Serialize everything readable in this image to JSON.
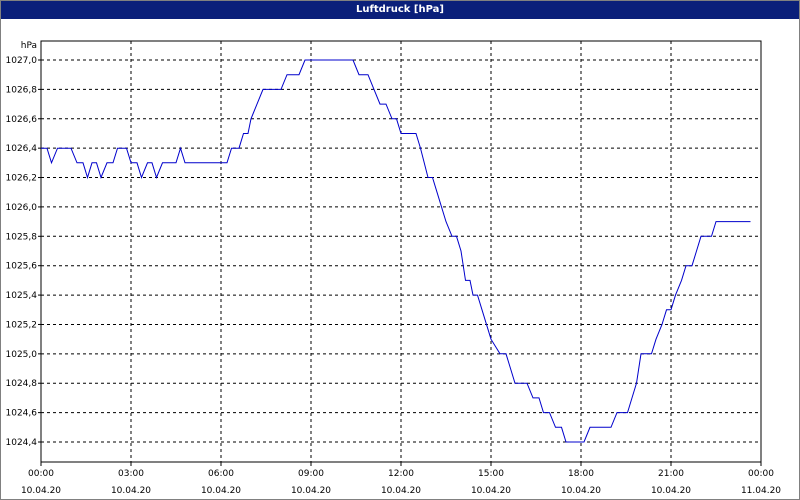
{
  "chart_data": {
    "type": "line",
    "title": "Luftdruck [hPa]",
    "ylabel": "hPa",
    "xlabel": "",
    "ylim": [
      1024.3,
      1027.1
    ],
    "xlim_hours": [
      0,
      24
    ],
    "grid": true,
    "legend": "none",
    "y_ticks": [
      "1027,0",
      "1026,8",
      "1026,6",
      "1026,4",
      "1026,2",
      "1026,0",
      "1025,8",
      "1025,6",
      "1025,4",
      "1025,2",
      "1025,0",
      "1024,8",
      "1024,6",
      "1024,4"
    ],
    "x_ticks": [
      {
        "time": "00:00",
        "date": "10.04.20"
      },
      {
        "time": "03:00",
        "date": "10.04.20"
      },
      {
        "time": "06:00",
        "date": "10.04.20"
      },
      {
        "time": "09:00",
        "date": "10.04.20"
      },
      {
        "time": "12:00",
        "date": "10.04.20"
      },
      {
        "time": "15:00",
        "date": "10.04.20"
      },
      {
        "time": "18:00",
        "date": "10.04.20"
      },
      {
        "time": "21:00",
        "date": "10.04.20"
      },
      {
        "time": "00:00",
        "date": "11.04.20"
      }
    ],
    "series": [
      {
        "color": "#0000cc",
        "points": [
          [
            0.0,
            1026.4
          ],
          [
            0.2,
            1026.4
          ],
          [
            0.35,
            1026.3
          ],
          [
            0.55,
            1026.4
          ],
          [
            1.0,
            1026.4
          ],
          [
            1.2,
            1026.3
          ],
          [
            1.4,
            1026.3
          ],
          [
            1.55,
            1026.2
          ],
          [
            1.7,
            1026.3
          ],
          [
            1.85,
            1026.3
          ],
          [
            2.0,
            1026.2
          ],
          [
            2.2,
            1026.3
          ],
          [
            2.4,
            1026.3
          ],
          [
            2.55,
            1026.4
          ],
          [
            2.85,
            1026.4
          ],
          [
            3.0,
            1026.3
          ],
          [
            3.2,
            1026.3
          ],
          [
            3.35,
            1026.2
          ],
          [
            3.55,
            1026.3
          ],
          [
            3.7,
            1026.3
          ],
          [
            3.85,
            1026.2
          ],
          [
            4.05,
            1026.3
          ],
          [
            4.5,
            1026.3
          ],
          [
            4.65,
            1026.4
          ],
          [
            4.8,
            1026.3
          ],
          [
            6.2,
            1026.3
          ],
          [
            6.35,
            1026.4
          ],
          [
            6.6,
            1026.4
          ],
          [
            6.75,
            1026.5
          ],
          [
            6.9,
            1026.5
          ],
          [
            7.0,
            1026.6
          ],
          [
            7.4,
            1026.8
          ],
          [
            8.0,
            1026.8
          ],
          [
            8.2,
            1026.9
          ],
          [
            8.6,
            1026.9
          ],
          [
            8.8,
            1027.0
          ],
          [
            10.4,
            1027.0
          ],
          [
            10.6,
            1026.9
          ],
          [
            10.9,
            1026.9
          ],
          [
            11.1,
            1026.8
          ],
          [
            11.3,
            1026.7
          ],
          [
            11.5,
            1026.7
          ],
          [
            11.7,
            1026.6
          ],
          [
            11.85,
            1026.6
          ],
          [
            12.0,
            1026.5
          ],
          [
            12.5,
            1026.5
          ],
          [
            12.65,
            1026.4
          ],
          [
            12.9,
            1026.2
          ],
          [
            13.05,
            1026.2
          ],
          [
            13.2,
            1026.1
          ],
          [
            13.5,
            1025.9
          ],
          [
            13.7,
            1025.8
          ],
          [
            13.85,
            1025.8
          ],
          [
            14.0,
            1025.7
          ],
          [
            14.15,
            1025.5
          ],
          [
            14.3,
            1025.5
          ],
          [
            14.4,
            1025.4
          ],
          [
            14.55,
            1025.4
          ],
          [
            14.7,
            1025.3
          ],
          [
            15.0,
            1025.1
          ],
          [
            15.3,
            1025.0
          ],
          [
            15.5,
            1025.0
          ],
          [
            15.65,
            1024.9
          ],
          [
            15.8,
            1024.8
          ],
          [
            16.2,
            1024.8
          ],
          [
            16.4,
            1024.7
          ],
          [
            16.6,
            1024.7
          ],
          [
            16.75,
            1024.6
          ],
          [
            16.95,
            1024.6
          ],
          [
            17.15,
            1024.5
          ],
          [
            17.35,
            1024.5
          ],
          [
            17.5,
            1024.4
          ],
          [
            18.1,
            1024.4
          ],
          [
            18.3,
            1024.5
          ],
          [
            19.0,
            1024.5
          ],
          [
            19.2,
            1024.6
          ],
          [
            19.55,
            1024.6
          ],
          [
            19.7,
            1024.7
          ],
          [
            19.85,
            1024.8
          ],
          [
            20.0,
            1025.0
          ],
          [
            20.35,
            1025.0
          ],
          [
            20.5,
            1025.1
          ],
          [
            20.7,
            1025.2
          ],
          [
            20.85,
            1025.3
          ],
          [
            21.0,
            1025.3
          ],
          [
            21.15,
            1025.4
          ],
          [
            21.35,
            1025.5
          ],
          [
            21.5,
            1025.6
          ],
          [
            21.7,
            1025.6
          ],
          [
            21.85,
            1025.7
          ],
          [
            22.0,
            1025.8
          ],
          [
            22.35,
            1025.8
          ],
          [
            22.5,
            1025.9
          ],
          [
            23.65,
            1025.9
          ]
        ]
      }
    ]
  }
}
